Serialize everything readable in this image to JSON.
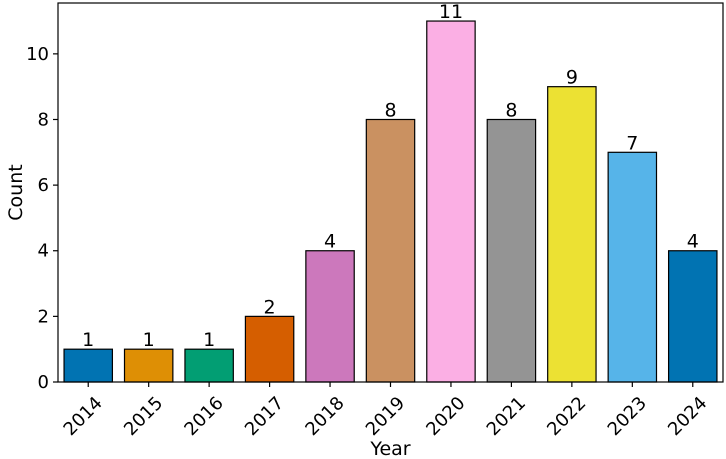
{
  "chart_data": {
    "type": "bar",
    "categories": [
      "2014",
      "2015",
      "2016",
      "2017",
      "2018",
      "2019",
      "2020",
      "2021",
      "2022",
      "2023",
      "2024"
    ],
    "values": [
      1,
      1,
      1,
      2,
      4,
      8,
      11,
      8,
      9,
      7,
      4
    ],
    "data_labels": [
      "1",
      "1",
      "1",
      "2",
      "4",
      "8",
      "11",
      "8",
      "9",
      "7",
      "4"
    ],
    "colors": [
      "#0173b2",
      "#de8f05",
      "#029e73",
      "#d55e00",
      "#cc78bc",
      "#ca9161",
      "#fbafe4",
      "#949494",
      "#ece133",
      "#56b4e9",
      "#0173b2"
    ],
    "title": "",
    "xlabel": "Year",
    "ylabel": "Count",
    "ylim": [
      0,
      11.55
    ],
    "yticks": [
      0,
      2,
      4,
      6,
      8,
      10
    ],
    "ytick_labels": [
      "0",
      "2",
      "4",
      "6",
      "8",
      "10"
    ],
    "grid": false,
    "legend": "none"
  }
}
